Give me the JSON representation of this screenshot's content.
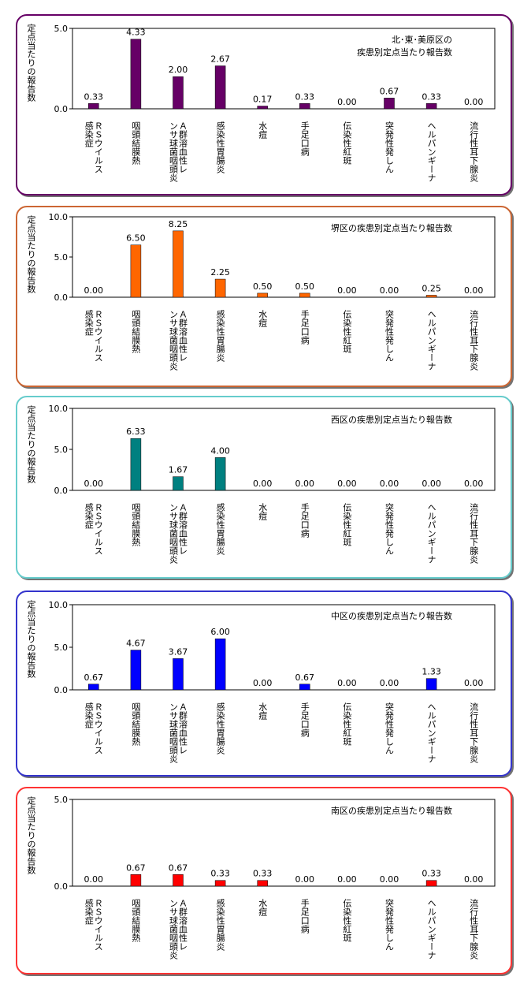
{
  "chart_data": [
    {
      "type": "bar",
      "title": "北･東･美原区の\n疾患別定点当たり報告数",
      "ylabel": "定点当たりの報告数",
      "ylim": [
        0,
        5
      ],
      "yticks": [
        "0.0",
        "5.0"
      ],
      "color": "#660066",
      "border": "#660066",
      "categories": [
        "ＲＳウイルス感染症",
        "咽頭結膜熱",
        "Ａ群溶血性レンサ球菌咽頭炎",
        "感染性胃腸炎",
        "水痘",
        "手足口病",
        "伝染性紅斑",
        "突発性発しん",
        "ヘルパンギーナ",
        "流行性耳下腺炎"
      ],
      "values": [
        0.33,
        4.33,
        2.0,
        2.67,
        0.17,
        0.33,
        0.0,
        0.67,
        0.33,
        0.0
      ],
      "labels": [
        "0.33",
        "4.33",
        "2.00",
        "2.67",
        "0.17",
        "0.33",
        "0.00",
        "0.67",
        "0.33",
        "0.00"
      ]
    },
    {
      "type": "bar",
      "title": "堺区の疾患別定点当たり報告数",
      "ylabel": "定点当たりの報告数",
      "ylim": [
        0,
        10
      ],
      "yticks": [
        "0.0",
        "5.0",
        "10.0"
      ],
      "color": "#ff6600",
      "border": "#cc6633",
      "categories": [
        "ＲＳウイルス感染症",
        "咽頭結膜熱",
        "Ａ群溶血性レンサ球菌咽頭炎",
        "感染性胃腸炎",
        "水痘",
        "手足口病",
        "伝染性紅斑",
        "突発性発しん",
        "ヘルパンギーナ",
        "流行性耳下腺炎"
      ],
      "values": [
        0.0,
        6.5,
        8.25,
        2.25,
        0.5,
        0.5,
        0.0,
        0.0,
        0.25,
        0.0
      ],
      "labels": [
        "0.00",
        "6.50",
        "8.25",
        "2.25",
        "0.50",
        "0.50",
        "0.00",
        "0.00",
        "0.25",
        "0.00"
      ]
    },
    {
      "type": "bar",
      "title": "西区の疾患別定点当たり報告数",
      "ylabel": "定点当たりの報告数",
      "ylim": [
        0,
        10
      ],
      "yticks": [
        "0.0",
        "5.0",
        "10.0"
      ],
      "color": "#008080",
      "border": "#66cccc",
      "categories": [
        "ＲＳウイルス感染症",
        "咽頭結膜熱",
        "Ａ群溶血性レンサ球菌咽頭炎",
        "感染性胃腸炎",
        "水痘",
        "手足口病",
        "伝染性紅斑",
        "突発性発しん",
        "ヘルパンギーナ",
        "流行性耳下腺炎"
      ],
      "values": [
        0.0,
        6.33,
        1.67,
        4.0,
        0.0,
        0.0,
        0.0,
        0.0,
        0.0,
        0.0
      ],
      "labels": [
        "0.00",
        "6.33",
        "1.67",
        "4.00",
        "0.00",
        "0.00",
        "0.00",
        "0.00",
        "0.00",
        "0.00"
      ]
    },
    {
      "type": "bar",
      "title": "中区の疾患別定点当たり報告数",
      "ylabel": "定点当たりの報告数",
      "ylim": [
        0,
        10
      ],
      "yticks": [
        "0.0",
        "5.0",
        "10.0"
      ],
      "color": "#0000ff",
      "border": "#3333cc",
      "categories": [
        "ＲＳウイルス感染症",
        "咽頭結膜熱",
        "Ａ群溶血性レンサ球菌咽頭炎",
        "感染性胃腸炎",
        "水痘",
        "手足口病",
        "伝染性紅斑",
        "突発性発しん",
        "ヘルパンギーナ",
        "流行性耳下腺炎"
      ],
      "values": [
        0.67,
        4.67,
        3.67,
        6.0,
        0.0,
        0.67,
        0.0,
        0.0,
        1.33,
        0.0
      ],
      "labels": [
        "0.67",
        "4.67",
        "3.67",
        "6.00",
        "0.00",
        "0.67",
        "0.00",
        "0.00",
        "1.33",
        "0.00"
      ]
    },
    {
      "type": "bar",
      "title": "南区の疾患別定点当たり報告数",
      "ylabel": "定点当たりの報告数",
      "ylim": [
        0,
        5
      ],
      "yticks": [
        "0.0",
        "5.0"
      ],
      "color": "#ff0000",
      "border": "#ff3333",
      "categories": [
        "ＲＳウイルス感染症",
        "咽頭結膜熱",
        "Ａ群溶血性レンサ球菌咽頭炎",
        "感染性胃腸炎",
        "水痘",
        "手足口病",
        "伝染性紅斑",
        "突発性発しん",
        "ヘルパンギーナ",
        "流行性耳下腺炎"
      ],
      "values": [
        0.0,
        0.67,
        0.67,
        0.33,
        0.33,
        0.0,
        0.0,
        0.0,
        0.33,
        0.0
      ],
      "labels": [
        "0.00",
        "0.67",
        "0.67",
        "0.33",
        "0.33",
        "0.00",
        "0.00",
        "0.00",
        "0.33",
        "0.00"
      ]
    }
  ]
}
